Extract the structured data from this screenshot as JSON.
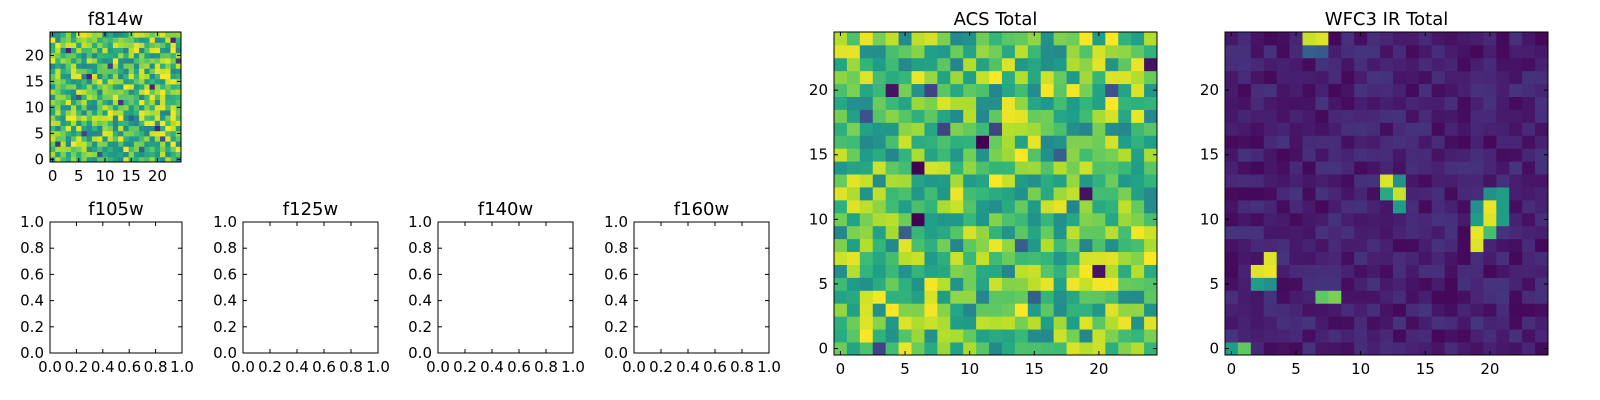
{
  "chart_data": [
    {
      "type": "heatmap",
      "title": "f814w",
      "colormap": "viridis",
      "size": [
        25,
        25
      ],
      "x_ticks": [
        "0",
        "5",
        "10",
        "15",
        "20"
      ],
      "y_ticks": [
        "0",
        "5",
        "10",
        "15",
        "20"
      ],
      "xlim": [
        -0.5,
        24.5
      ],
      "ylim": [
        -0.5,
        24.5
      ],
      "pattern": "noise",
      "low_pixels": [
        [
          1,
          3,
          0.15
        ],
        [
          3,
          21,
          0.1
        ],
        [
          6,
          5,
          0.2
        ],
        [
          7,
          16,
          0.1
        ],
        [
          11,
          18,
          0.2
        ],
        [
          13,
          11,
          0.15
        ],
        [
          15,
          8,
          0.3
        ],
        [
          19,
          14,
          0.1
        ],
        [
          20,
          6,
          0.1
        ],
        [
          21,
          4,
          0.25
        ],
        [
          23,
          23,
          0.1
        ],
        [
          24,
          19,
          0.2
        ],
        [
          9,
          1,
          0.25
        ],
        [
          17,
          2,
          0.3
        ],
        [
          5,
          12,
          0.25
        ]
      ]
    },
    {
      "type": "empty",
      "title": "f105w",
      "x_ticks": [
        "0.0",
        "0.2",
        "0.4",
        "0.6",
        "0.8",
        "1.0"
      ],
      "y_ticks": [
        "0.0",
        "0.2",
        "0.4",
        "0.6",
        "0.8",
        "1.0"
      ],
      "xlim": [
        0,
        1
      ],
      "ylim": [
        0,
        1
      ]
    },
    {
      "type": "empty",
      "title": "f125w",
      "x_ticks": [
        "0.0",
        "0.2",
        "0.4",
        "0.6",
        "0.8",
        "1.0"
      ],
      "y_ticks": [
        "0.0",
        "0.2",
        "0.4",
        "0.6",
        "0.8",
        "1.0"
      ],
      "xlim": [
        0,
        1
      ],
      "ylim": [
        0,
        1
      ]
    },
    {
      "type": "empty",
      "title": "f140w",
      "x_ticks": [
        "0.0",
        "0.2",
        "0.4",
        "0.6",
        "0.8",
        "1.0"
      ],
      "y_ticks": [
        "0.0",
        "0.2",
        "0.4",
        "0.6",
        "0.8",
        "1.0"
      ],
      "xlim": [
        0,
        1
      ],
      "ylim": [
        0,
        1
      ]
    },
    {
      "type": "empty",
      "title": "f160w",
      "x_ticks": [
        "0.0",
        "0.2",
        "0.4",
        "0.6",
        "0.8",
        "1.0"
      ],
      "y_ticks": [
        "0.0",
        "0.2",
        "0.4",
        "0.6",
        "0.8",
        "1.0"
      ],
      "xlim": [
        0,
        1
      ],
      "ylim": [
        0,
        1
      ]
    },
    {
      "type": "heatmap",
      "title": "ACS Total",
      "colormap": "viridis",
      "size": [
        25,
        25
      ],
      "x_ticks": [
        "0",
        "5",
        "10",
        "15",
        "20"
      ],
      "y_ticks": [
        "0",
        "5",
        "10",
        "15",
        "20"
      ],
      "xlim": [
        -0.5,
        24.5
      ],
      "ylim": [
        -0.5,
        24.5
      ],
      "pattern": "noise",
      "low_pixels": [
        [
          11,
          16,
          0.0
        ],
        [
          6,
          14,
          0.0
        ],
        [
          8,
          17,
          0.2
        ],
        [
          4,
          20,
          0.05
        ],
        [
          24,
          22,
          0.05
        ],
        [
          20,
          6,
          0.05
        ],
        [
          19,
          12,
          0.05
        ],
        [
          6,
          10,
          0.0
        ],
        [
          7,
          20,
          0.2
        ],
        [
          12,
          17,
          0.2
        ],
        [
          5,
          9,
          0.3
        ],
        [
          15,
          4,
          0.3
        ],
        [
          3,
          0,
          0.2
        ],
        [
          17,
          15,
          0.3
        ],
        [
          21,
          20,
          0.25
        ],
        [
          14,
          8,
          0.3
        ],
        [
          2,
          18,
          0.25
        ]
      ]
    },
    {
      "type": "heatmap",
      "title": "WFC3 IR Total",
      "colormap": "viridis",
      "size": [
        25,
        25
      ],
      "x_ticks": [
        "0",
        "5",
        "10",
        "15",
        "20"
      ],
      "y_ticks": [
        "0",
        "5",
        "10",
        "15",
        "20"
      ],
      "xlim": [
        -0.5,
        24.5
      ],
      "ylim": [
        -0.5,
        24.5
      ],
      "pattern": "dark",
      "bright_pixels": [
        [
          6,
          24,
          0.92
        ],
        [
          7,
          24,
          0.95
        ],
        [
          6,
          23,
          0.3
        ],
        [
          7,
          23,
          0.28
        ],
        [
          12,
          13,
          0.95
        ],
        [
          13,
          13,
          0.5
        ],
        [
          12,
          12,
          0.6
        ],
        [
          13,
          12,
          0.92
        ],
        [
          13,
          11,
          0.55
        ],
        [
          20,
          12,
          0.5
        ],
        [
          21,
          12,
          0.55
        ],
        [
          19,
          11,
          0.5
        ],
        [
          20,
          11,
          0.97
        ],
        [
          21,
          11,
          0.55
        ],
        [
          19,
          10,
          0.55
        ],
        [
          20,
          10,
          0.95
        ],
        [
          21,
          10,
          0.55
        ],
        [
          19,
          9,
          0.97
        ],
        [
          20,
          9,
          0.7
        ],
        [
          19,
          8,
          0.95
        ],
        [
          3,
          7,
          0.95
        ],
        [
          2,
          6,
          0.95
        ],
        [
          3,
          6,
          0.97
        ],
        [
          2,
          5,
          0.55
        ],
        [
          3,
          5,
          0.5
        ],
        [
          7,
          4,
          0.75
        ],
        [
          8,
          4,
          0.8
        ],
        [
          0,
          0,
          0.55
        ],
        [
          1,
          0,
          0.75
        ]
      ]
    }
  ]
}
